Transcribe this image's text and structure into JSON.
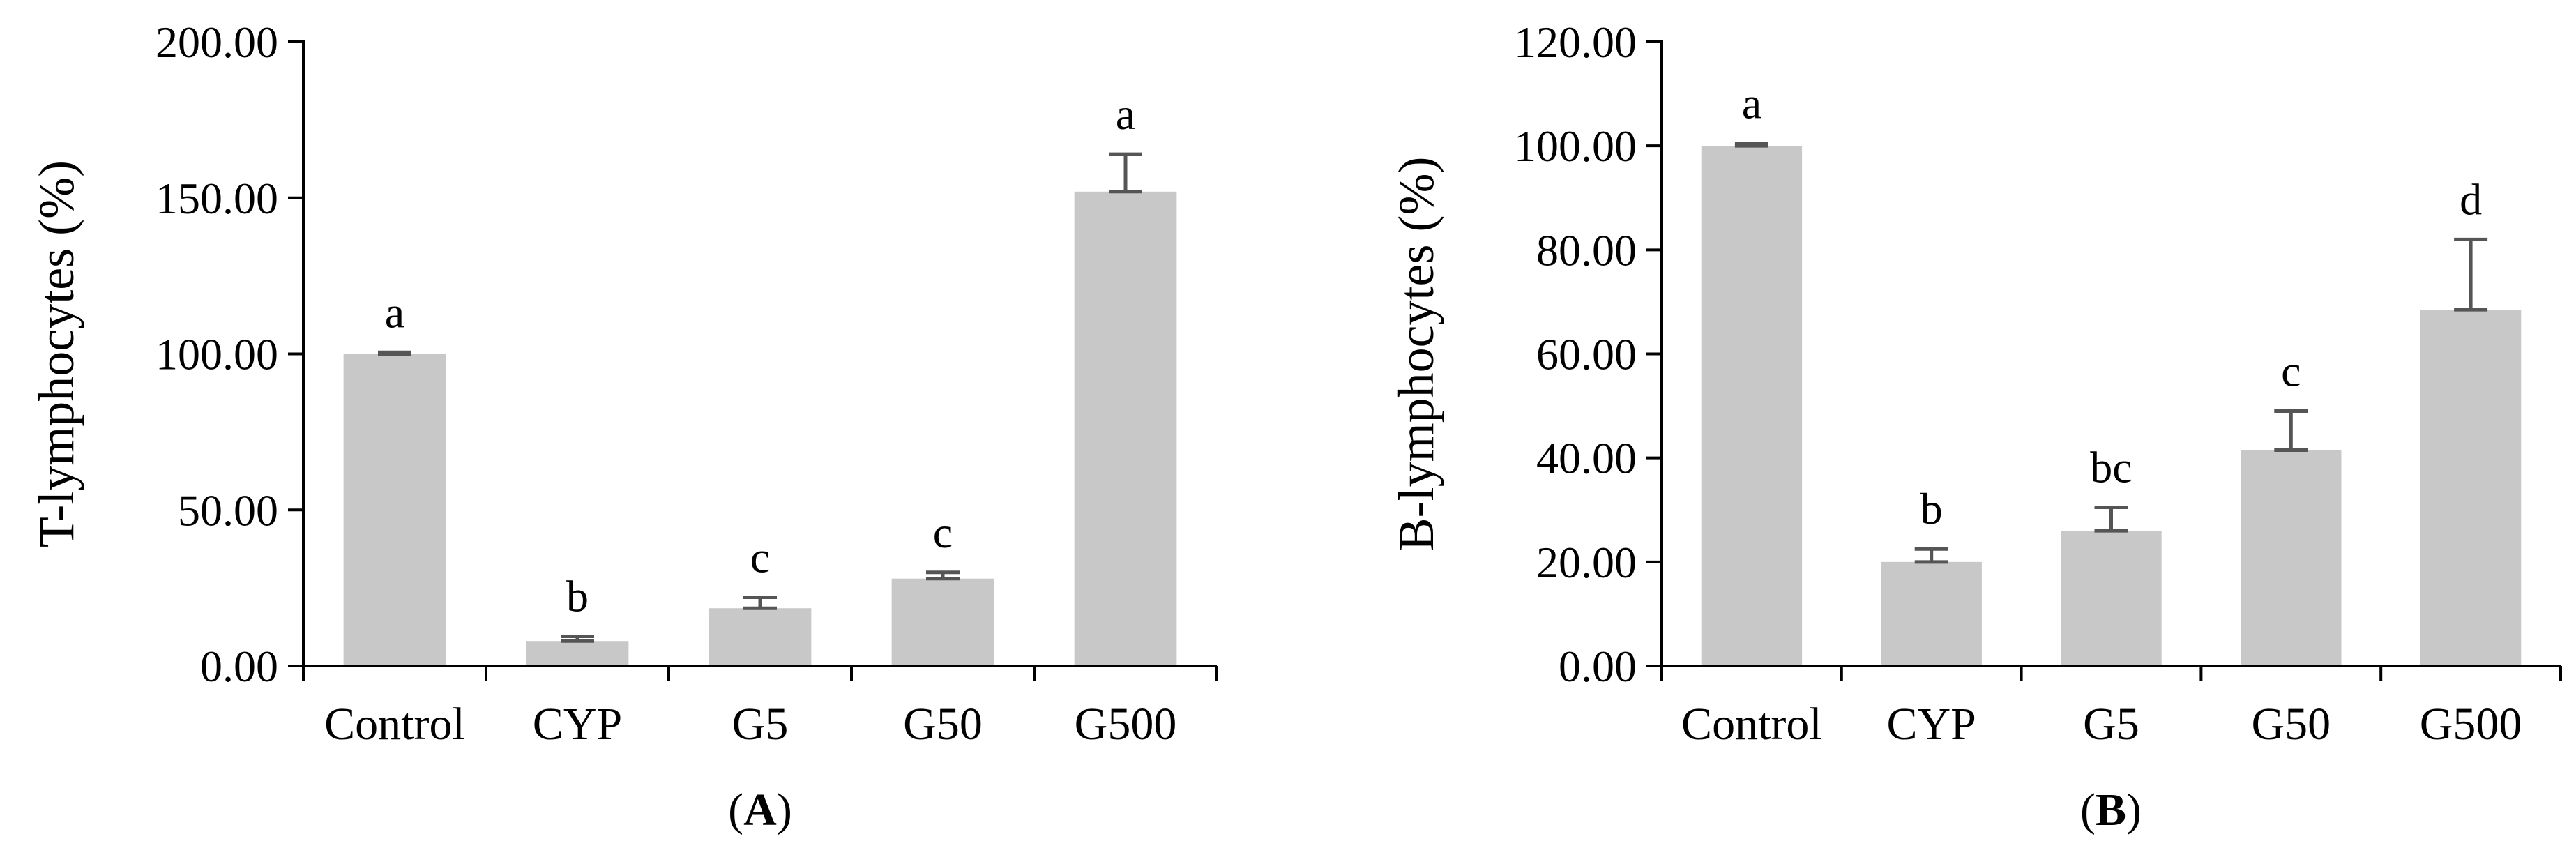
{
  "chart_data": [
    {
      "type": "bar",
      "panel_label": "A",
      "title": "",
      "xlabel": "",
      "ylabel": "T-lymphocytes (%)",
      "ylim": [
        0,
        200
      ],
      "y_ticks": [
        "0.00",
        "50.00",
        "100.00",
        "150.00",
        "200.00"
      ],
      "categories": [
        "Control",
        "CYP",
        "G5",
        "G50",
        "G500"
      ],
      "values": [
        100.0,
        8.0,
        18.5,
        28.0,
        152.0
      ],
      "error_upper": [
        0.5,
        1.5,
        3.5,
        2.0,
        12.0
      ],
      "significance": [
        "a",
        "b",
        "c",
        "c",
        "a"
      ],
      "bar_color": "#c8c8c8",
      "error_color": "#555555",
      "grid": false,
      "legend": "none"
    },
    {
      "type": "bar",
      "panel_label": "B",
      "title": "",
      "xlabel": "",
      "ylabel": "B-lymphocytes (%)",
      "ylim": [
        0,
        120
      ],
      "y_ticks": [
        "0.00",
        "20.00",
        "40.00",
        "60.00",
        "80.00",
        "100.00",
        "120.00"
      ],
      "categories": [
        "Control",
        "CYP",
        "G5",
        "G50",
        "G500"
      ],
      "values": [
        100.0,
        20.0,
        26.0,
        41.5,
        68.5
      ],
      "error_upper": [
        0.5,
        2.5,
        4.5,
        7.5,
        13.5
      ],
      "significance": [
        "a",
        "b",
        "bc",
        "c",
        "d"
      ],
      "bar_color": "#c8c8c8",
      "error_color": "#555555",
      "grid": false,
      "legend": "none"
    }
  ]
}
